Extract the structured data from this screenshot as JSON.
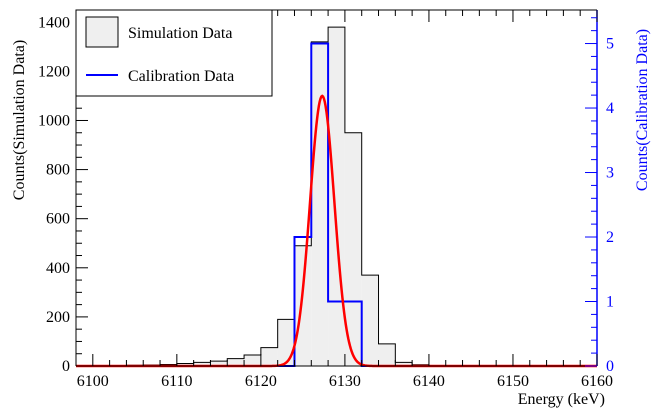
{
  "chart_data": {
    "type": "histogram",
    "xlabel": "Energy (keV)",
    "ylabel_left": "Counts(Simulation Data)",
    "ylabel_right": "Counts(Calibration Data)",
    "xlim": [
      6098,
      6160
    ],
    "ylim_left": [
      0,
      1450
    ],
    "ylim_right": [
      0,
      5.52
    ],
    "x_ticks": [
      6100,
      6110,
      6120,
      6130,
      6140,
      6150,
      6160
    ],
    "y_ticks_left": [
      0,
      200,
      400,
      600,
      800,
      1000,
      1200,
      1400
    ],
    "y_ticks_right": [
      0,
      1,
      2,
      3,
      4,
      5
    ],
    "legend_placement": "top-left",
    "series": [
      {
        "name": "Simulation Data",
        "kind": "histogram",
        "axis": "left",
        "color": "#000000",
        "fill": "#efefef",
        "bin_edges": [
          6098,
          6100,
          6102,
          6104,
          6106,
          6108,
          6110,
          6112,
          6114,
          6116,
          6118,
          6120,
          6122,
          6124,
          6126,
          6128,
          6130,
          6132,
          6134,
          6136,
          6138,
          6140,
          6142,
          6144,
          6146,
          6148,
          6150,
          6152,
          6154,
          6156,
          6158,
          6160
        ],
        "values": [
          0,
          1,
          2,
          3,
          4,
          6,
          10,
          15,
          20,
          30,
          45,
          75,
          190,
          490,
          1320,
          1380,
          950,
          370,
          90,
          15,
          5,
          2,
          1,
          0,
          0,
          0,
          0,
          0,
          0,
          0,
          0
        ]
      },
      {
        "name": "Calibration Data",
        "kind": "histogram",
        "axis": "right",
        "color": "#0000ff",
        "bin_edges": [
          6098,
          6124,
          6126,
          6128,
          6132,
          6160
        ],
        "values": [
          0,
          2,
          5,
          1,
          0
        ]
      },
      {
        "name": "",
        "kind": "gaussian-fit",
        "axis": "left",
        "color": "#ff0000",
        "mean": 6127.3,
        "sigma": 1.45,
        "amplitude": 1100,
        "x_range": [
          6098,
          6160
        ]
      }
    ]
  }
}
